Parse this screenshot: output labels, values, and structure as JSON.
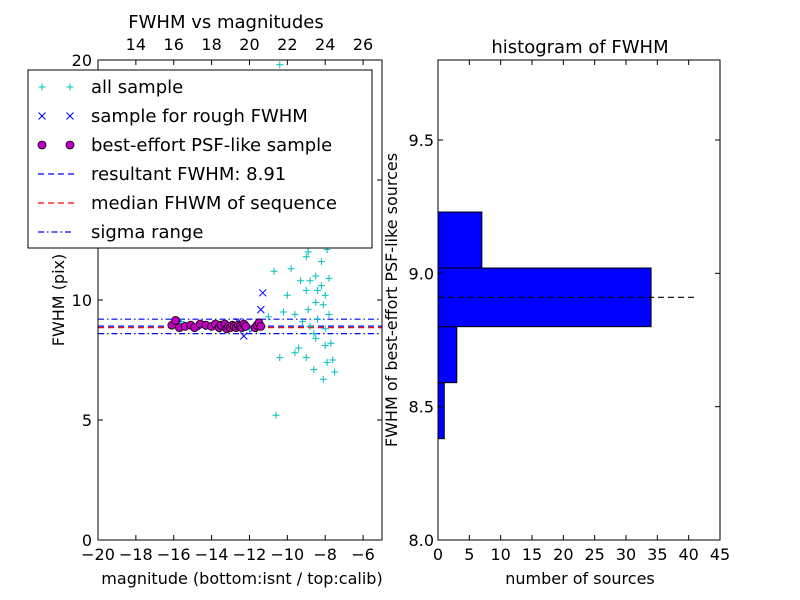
{
  "chart_data": [
    {
      "type": "scatter",
      "title": "FWHM vs magnitudes",
      "xlabel": "magnitude (bottom:isnt / top:calib)",
      "ylabel": "FWHM (pix)",
      "xlim": [
        -20,
        -5
      ],
      "ylim": [
        0,
        20
      ],
      "x_ticks": [
        -20,
        -18,
        -16,
        -14,
        -12,
        -10,
        -8,
        -6
      ],
      "x_tick_labels": [
        "−20",
        "−18",
        "−16",
        "−14",
        "−12",
        "−10",
        "−8",
        "−6"
      ],
      "y_ticks": [
        0,
        5,
        10,
        15,
        20
      ],
      "y_tick_labels": [
        "0",
        "5",
        "10",
        "15",
        "20"
      ],
      "top_axis": {
        "offset": 32,
        "ticks": [
          14,
          16,
          18,
          20,
          22,
          24,
          26
        ],
        "tick_labels": [
          "14",
          "16",
          "18",
          "20",
          "22",
          "24",
          "26"
        ]
      },
      "legend_position": "top-left",
      "legend": [
        {
          "label": "all sample",
          "marker": "plus",
          "color": "#00bfbf"
        },
        {
          "label": "sample for rough FWHM",
          "marker": "x",
          "color": "#0000ff"
        },
        {
          "label": "best-effort PSF-like sample",
          "marker": "circle",
          "color": "#bf00bf"
        },
        {
          "label": "resultant FWHM: 8.91",
          "line": "dashed",
          "color": "#0000ff"
        },
        {
          "label": "median FHWM of sequence",
          "line": "dashed",
          "color": "#ff0000"
        },
        {
          "label": "sigma range",
          "line": "dashdot",
          "color": "#0000ff"
        }
      ],
      "hlines": [
        {
          "y": 8.91,
          "style": "dashed",
          "color": "#0000ff"
        },
        {
          "y": 8.85,
          "style": "dashed",
          "color": "#ff0000"
        },
        {
          "y": 9.2,
          "style": "dashdot",
          "color": "#0000ff"
        },
        {
          "y": 8.6,
          "style": "dashdot",
          "color": "#0000ff"
        }
      ],
      "series": [
        {
          "name": "all sample",
          "marker": "plus",
          "color": "#00bfbf",
          "points": [
            [
              -15.9,
              9.0
            ],
            [
              -15.6,
              9.1
            ],
            [
              -15.0,
              8.9
            ],
            [
              -14.6,
              9.0
            ],
            [
              -14.2,
              8.9
            ],
            [
              -13.7,
              8.9
            ],
            [
              -13.2,
              9.0
            ],
            [
              -12.9,
              8.9
            ],
            [
              -12.5,
              8.9
            ],
            [
              -12.0,
              8.8
            ],
            [
              -11.6,
              9.0
            ],
            [
              -11.3,
              8.9
            ],
            [
              -10.6,
              5.2
            ],
            [
              -10.2,
              9.5
            ],
            [
              -10.0,
              10.2
            ],
            [
              -9.8,
              11.3
            ],
            [
              -10.4,
              12.5
            ],
            [
              -10.5,
              13.3
            ],
            [
              -10.0,
              14.2
            ],
            [
              -9.8,
              15.2
            ],
            [
              -9.7,
              16.3
            ],
            [
              -10.4,
              19.8
            ],
            [
              -9.5,
              18.5
            ],
            [
              -9.3,
              14.5
            ],
            [
              -9.2,
              13.0
            ],
            [
              -9.0,
              11.8
            ],
            [
              -9.0,
              10.4
            ],
            [
              -8.9,
              9.6
            ],
            [
              -8.8,
              8.9
            ],
            [
              -8.8,
              13.9
            ],
            [
              -8.7,
              15.3
            ],
            [
              -8.6,
              12.4
            ],
            [
              -8.5,
              11.0
            ],
            [
              -8.5,
              9.9
            ],
            [
              -8.4,
              9.2
            ],
            [
              -8.3,
              14.6
            ],
            [
              -8.3,
              12.8
            ],
            [
              -8.2,
              11.6
            ],
            [
              -8.2,
              10.6
            ],
            [
              -8.1,
              9.8
            ],
            [
              -8.0,
              8.8
            ],
            [
              -8.0,
              8.1
            ],
            [
              -7.9,
              7.4
            ],
            [
              -7.9,
              12.1
            ],
            [
              -7.8,
              10.9
            ],
            [
              -7.8,
              9.4
            ],
            [
              -7.7,
              8.2
            ],
            [
              -7.6,
              7.5
            ],
            [
              -7.5,
              7.0
            ],
            [
              -8.1,
              6.7
            ],
            [
              -8.6,
              7.1
            ],
            [
              -9.0,
              7.6
            ],
            [
              -9.4,
              8.0
            ],
            [
              -9.6,
              7.8
            ],
            [
              -10.4,
              7.6
            ],
            [
              -11.0,
              9.3
            ],
            [
              -8.4,
              16.5
            ],
            [
              -8.9,
              17.2
            ],
            [
              -8.5,
              17.8
            ],
            [
              -9.1,
              15.8
            ],
            [
              -8.7,
              13.3
            ],
            [
              -8.9,
              12.0
            ],
            [
              -9.3,
              10.8
            ],
            [
              -8.2,
              13.5
            ],
            [
              -7.9,
              13.9
            ],
            [
              -7.8,
              14.7
            ],
            [
              -8.3,
              16.0
            ],
            [
              -8.0,
              10.2
            ],
            [
              -8.4,
              10.4
            ],
            [
              -8.6,
              8.6
            ],
            [
              -9.2,
              9.1
            ],
            [
              -9.6,
              9.4
            ],
            [
              -10.7,
              11.2
            ],
            [
              -10.6,
              13.0
            ],
            [
              -10.1,
              12.6
            ],
            [
              -9.9,
              13.6
            ],
            [
              -8.8,
              10.8
            ],
            [
              -8.5,
              8.4
            ]
          ]
        },
        {
          "name": "sample for rough FWHM",
          "marker": "x",
          "color": "#0000ff",
          "points": [
            [
              -15.8,
              9.0
            ],
            [
              -14.5,
              8.9
            ],
            [
              -13.4,
              8.8
            ],
            [
              -12.3,
              8.5
            ],
            [
              -11.8,
              8.8
            ],
            [
              -11.4,
              9.6
            ],
            [
              -11.3,
              10.3
            ],
            [
              -12.6,
              9.1
            ]
          ]
        },
        {
          "name": "best-effort PSF-like sample",
          "marker": "circle",
          "color": "#bf00bf",
          "points": [
            [
              -16.1,
              8.95
            ],
            [
              -15.9,
              9.15
            ],
            [
              -15.7,
              8.85
            ],
            [
              -15.4,
              8.9
            ],
            [
              -15.1,
              8.95
            ],
            [
              -14.9,
              8.85
            ],
            [
              -14.6,
              9.0
            ],
            [
              -14.3,
              8.95
            ],
            [
              -14.0,
              8.9
            ],
            [
              -13.8,
              9.0
            ],
            [
              -13.6,
              8.85
            ],
            [
              -13.5,
              8.95
            ],
            [
              -13.3,
              9.0
            ],
            [
              -13.2,
              8.8
            ],
            [
              -13.1,
              8.9
            ],
            [
              -13.0,
              8.85
            ],
            [
              -12.9,
              8.95
            ],
            [
              -12.8,
              8.9
            ],
            [
              -12.7,
              8.85
            ],
            [
              -12.6,
              8.95
            ],
            [
              -12.5,
              8.9
            ],
            [
              -12.4,
              8.85
            ],
            [
              -12.3,
              9.0
            ],
            [
              -12.2,
              8.9
            ],
            [
              -11.7,
              8.85
            ],
            [
              -11.6,
              8.95
            ],
            [
              -11.5,
              9.05
            ],
            [
              -11.4,
              8.9
            ]
          ]
        }
      ]
    },
    {
      "type": "histogram",
      "orientation": "horizontal",
      "title": "histogram of FWHM",
      "xlabel": "number of sources",
      "ylabel": "FWHM of best-effort PSF-like sources",
      "xlim": [
        0,
        45
      ],
      "ylim": [
        8.0,
        9.8
      ],
      "x_ticks": [
        0,
        5,
        10,
        15,
        20,
        25,
        30,
        35,
        40,
        45
      ],
      "x_tick_labels": [
        "0",
        "5",
        "10",
        "15",
        "20",
        "25",
        "30",
        "35",
        "40",
        "45"
      ],
      "y_ticks": [
        8.0,
        8.5,
        9.0,
        9.5
      ],
      "y_tick_labels": [
        "8.0",
        "8.5",
        "9.0",
        "9.5"
      ],
      "bar_color": "#0000ff",
      "bins": [
        {
          "from": 8.38,
          "to": 8.59,
          "count": 1
        },
        {
          "from": 8.59,
          "to": 8.8,
          "count": 3
        },
        {
          "from": 8.8,
          "to": 9.02,
          "count": 34
        },
        {
          "from": 9.02,
          "to": 9.23,
          "count": 7
        }
      ],
      "hline": {
        "y": 8.91,
        "style": "dashed",
        "color": "#000000"
      }
    }
  ]
}
